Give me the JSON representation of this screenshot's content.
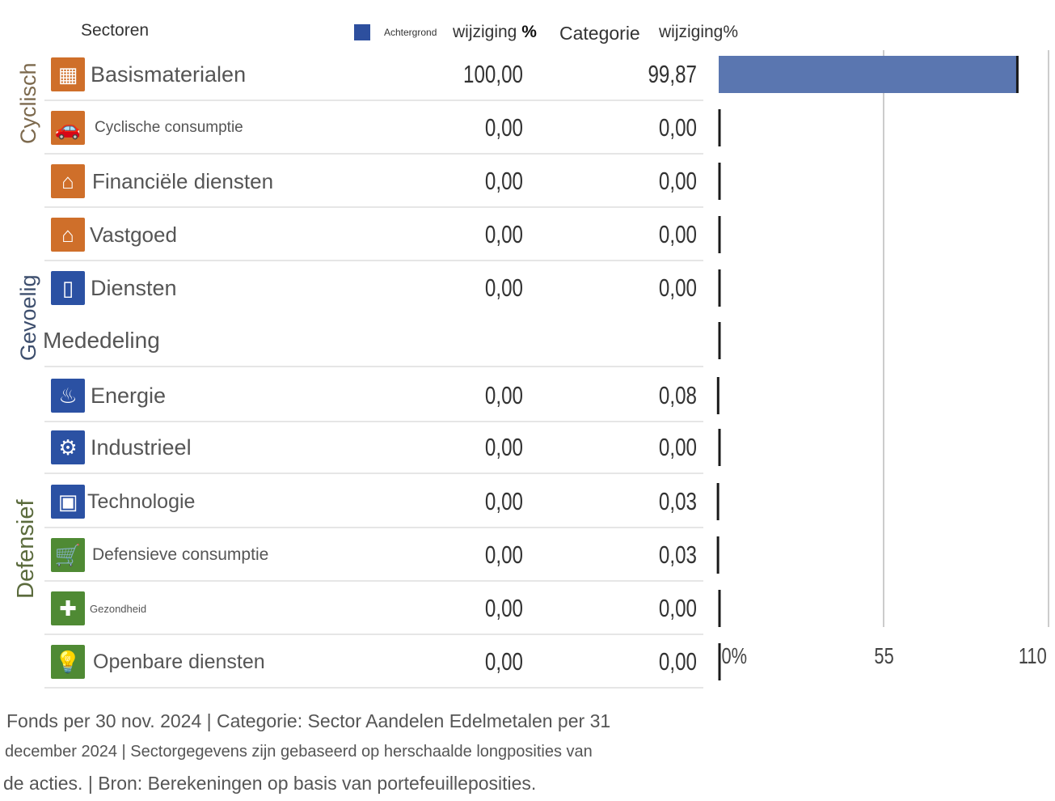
{
  "header": {
    "sectors_label": "Sectoren",
    "legend_swatch_label": "Achtergrond",
    "col1_label": "wijziging",
    "col1_suffix": "%",
    "col2_label": "Categorie",
    "col2_suffix": "wijziging%"
  },
  "groups": [
    {
      "label": "Cyclisch",
      "color": "#7d6a4e"
    },
    {
      "label": "Gevoelig",
      "color": "#3e4f6e"
    },
    {
      "label": "Defensief",
      "color": "#5b6b3d"
    }
  ],
  "colors": {
    "fund_bar": "#5a76b0",
    "category_marker": "#1a1a1a",
    "legend_swatch": "#2d4f9e",
    "cyclical_icon": "#cf6f2a",
    "sensitive_icon": "#2b51a3",
    "defensive_icon": "#4f8a34",
    "grid": "#cccccc"
  },
  "rows": [
    {
      "name": "Basismaterialen",
      "fund": "100,00",
      "category": "99,87",
      "icon": "bricks-icon",
      "group": "cyclical"
    },
    {
      "name": "Cyclische consumptie",
      "fund": "0,00",
      "category": "0,00",
      "icon": "car-icon",
      "group": "cyclical"
    },
    {
      "name": "Financiële diensten",
      "fund": "0,00",
      "category": "0,00",
      "icon": "bank-icon",
      "group": "cyclical"
    },
    {
      "name": "Vastgoed",
      "fund": "0,00",
      "category": "0,00",
      "icon": "house-icon",
      "group": "cyclical"
    },
    {
      "name": "Diensten",
      "fund": "0,00",
      "category": "0,00",
      "icon": "phone-icon",
      "group": "sensitive"
    },
    {
      "name": "Mededeling",
      "fund": "",
      "category": "",
      "icon": "",
      "group": "sensitive"
    },
    {
      "name": "Energie",
      "fund": "0,00",
      "category": "0,08",
      "icon": "flame-icon",
      "group": "sensitive"
    },
    {
      "name": "Industrieel",
      "fund": "0,00",
      "category": "0,00",
      "icon": "gear-icon",
      "group": "sensitive"
    },
    {
      "name": "Technologie",
      "fund": "0,00",
      "category": "0,03",
      "icon": "computer-icon",
      "group": "sensitive"
    },
    {
      "name": "Defensieve consumptie",
      "fund": "0,00",
      "category": "0,03",
      "icon": "cart-icon",
      "group": "defensive"
    },
    {
      "name": "Gezondheid",
      "fund": "0,00",
      "category": "0,00",
      "icon": "cross-icon",
      "group": "defensive"
    },
    {
      "name": "Openbare diensten",
      "fund": "0,00",
      "category": "0,00",
      "icon": "lightbulb-icon",
      "group": "defensive"
    }
  ],
  "chart_data": {
    "type": "bar",
    "orientation": "horizontal",
    "categories": [
      "Basismaterialen",
      "Cyclische consumptie",
      "Financiële diensten",
      "Vastgoed",
      "Diensten",
      "Mededeling",
      "Energie",
      "Industrieel",
      "Technologie",
      "Defensieve consumptie",
      "Gezondheid",
      "Openbare diensten"
    ],
    "series": [
      {
        "name": "Achtergrond",
        "values": [
          100,
          0,
          0,
          0,
          0,
          0,
          0,
          0,
          0,
          0,
          0,
          0
        ]
      },
      {
        "name": "Categorie",
        "values": [
          99.87,
          0,
          0,
          0,
          0,
          0,
          0.08,
          0,
          0.03,
          0.03,
          0,
          0
        ]
      }
    ],
    "xlim": [
      0,
      110
    ],
    "xticks": [
      0,
      55,
      110
    ],
    "xtick_labels": [
      "0%",
      "55",
      "110"
    ],
    "grid": true
  },
  "footer": {
    "line1": "Fonds per 30 nov. 2024 | Categorie: Sector Aandelen Edelmetalen per 31",
    "line2": "december 2024 | Sectorgegevens zijn gebaseerd op herschaalde longposities van",
    "line3": "de acties. | Bron: Berekeningen op basis van portefeuilleposities."
  }
}
